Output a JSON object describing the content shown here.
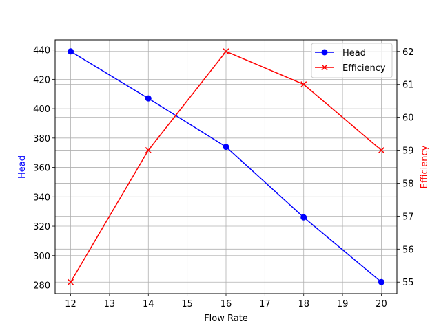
{
  "chart_data": {
    "type": "line",
    "title": "",
    "x": [
      12,
      14,
      16,
      18,
      20
    ],
    "xlabel": "Flow Rate",
    "xticks": [
      12,
      13,
      14,
      15,
      16,
      17,
      18,
      19,
      20
    ],
    "xlim": [
      11.6,
      20.4
    ],
    "grid": true,
    "legend_position": "upper right",
    "series": [
      {
        "name": "Head",
        "axis": "left",
        "color": "#0000ff",
        "marker": "o",
        "values": [
          439,
          407,
          374,
          326,
          282
        ]
      },
      {
        "name": "Efficiency",
        "axis": "right",
        "color": "#ff0000",
        "marker": "x",
        "values": [
          55,
          59,
          62,
          61,
          59
        ]
      }
    ],
    "ylabel_left": "Head",
    "ylabel_left_color": "#0000ff",
    "yticks_left": [
      280,
      300,
      320,
      340,
      360,
      380,
      400,
      420,
      440
    ],
    "ylim_left": [
      274.15,
      446.85
    ],
    "ylabel_right": "Efficiency",
    "ylabel_right_color": "#ff0000",
    "yticks_right": [
      55,
      56,
      57,
      58,
      59,
      60,
      61,
      62
    ],
    "ylim_right": [
      54.65,
      62.35
    ]
  }
}
